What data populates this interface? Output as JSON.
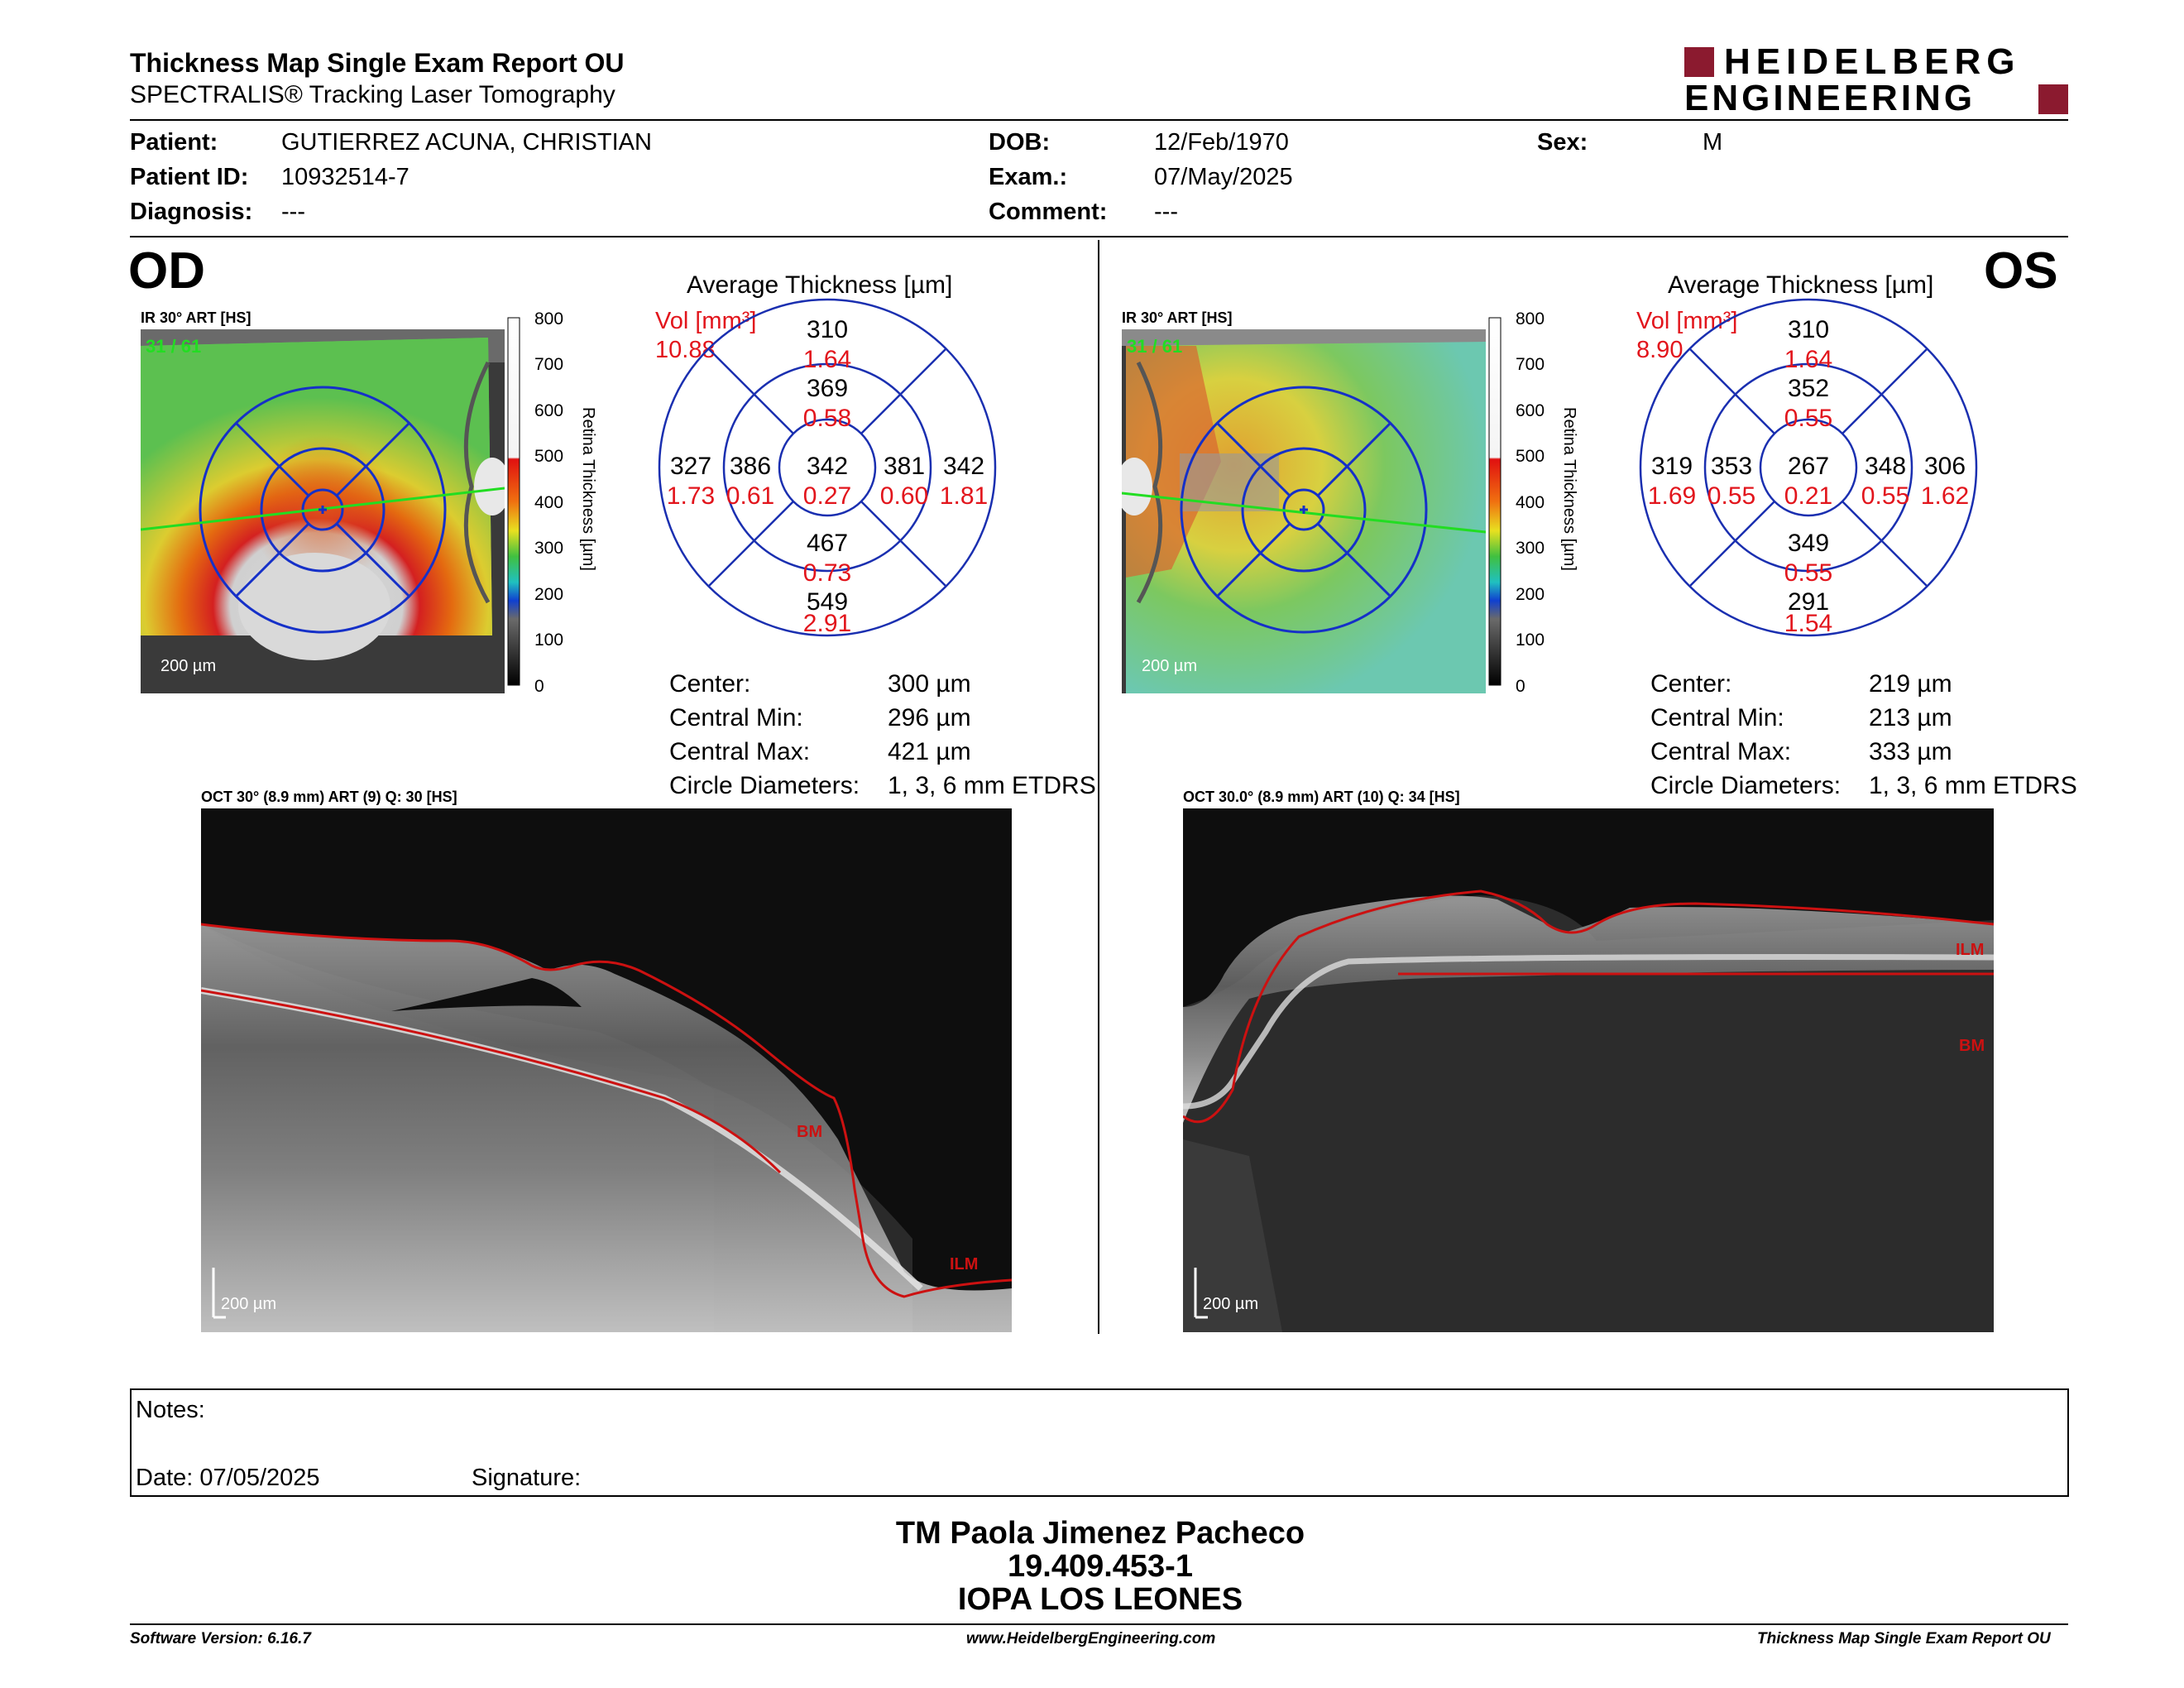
{
  "header": {
    "title": "Thickness Map Single Exam Report OU",
    "subtitle": "SPECTRALIS® Tracking Laser Tomography",
    "logo_line1": "HEIDELBERG",
    "logo_line2": "ENGINEERING",
    "logo_color": "#8b1a2f"
  },
  "patient": {
    "patient_label": "Patient:",
    "patient_value": "GUTIERREZ ACUNA, CHRISTIAN",
    "id_label": "Patient ID:",
    "id_value": "10932514-7",
    "diagnosis_label": "Diagnosis:",
    "diagnosis_value": "---",
    "dob_label": "DOB:",
    "dob_value": "12/Feb/1970",
    "exam_label": "Exam.:",
    "exam_value": "07/May/2025",
    "comment_label": "Comment:",
    "comment_value": "---",
    "sex_label": "Sex:",
    "sex_value": "M"
  },
  "scale": {
    "ticks": [
      "800",
      "700",
      "600",
      "500",
      "400",
      "300",
      "200",
      "100",
      "0"
    ],
    "label": "Retina  Thickness [µm]"
  },
  "od": {
    "eye": "OD",
    "ir_caption": "IR 30° ART [HS]",
    "ir_overlay": "31 / 61",
    "ir_scalebar": "200 µm",
    "avg_title": "Average Thickness [µm]",
    "vol_label": "Vol [mm³]",
    "vol_total": "10.88",
    "sectors": {
      "outer_top": {
        "t": "310",
        "v": "1.64"
      },
      "inner_top": {
        "t": "369",
        "v": "0.58"
      },
      "outer_left": {
        "t": "327",
        "v": "1.73"
      },
      "inner_left": {
        "t": "386",
        "v": "0.61"
      },
      "center": {
        "t": "342",
        "v": "0.27"
      },
      "inner_right": {
        "t": "381",
        "v": "0.60"
      },
      "outer_right": {
        "t": "342",
        "v": "1.81"
      },
      "inner_bottom": {
        "t": "467",
        "v": "0.73"
      },
      "outer_bottom": {
        "t": "549",
        "v": "2.91"
      }
    },
    "stats": [
      {
        "label": "Center:",
        "value": "300 µm"
      },
      {
        "label": "Central Min:",
        "value": "296 µm"
      },
      {
        "label": "Central Max:",
        "value": "421 µm"
      },
      {
        "label": "Circle Diameters:",
        "value": "1, 3, 6 mm ETDRS"
      }
    ],
    "oct_caption": "OCT 30° (8.9 mm) ART (9) Q: 30 [HS]",
    "oct_scalebar": "200 µm",
    "bm_label": "BM",
    "ilm_label": "ILM"
  },
  "os": {
    "eye": "OS",
    "ir_caption": "IR 30° ART [HS]",
    "ir_overlay": "31 / 61",
    "ir_scalebar": "200 µm",
    "avg_title": "Average Thickness [µm]",
    "vol_label": "Vol [mm³]",
    "vol_total": "8.90",
    "sectors": {
      "outer_top": {
        "t": "310",
        "v": "1.64"
      },
      "inner_top": {
        "t": "352",
        "v": "0.55"
      },
      "outer_left": {
        "t": "319",
        "v": "1.69"
      },
      "inner_left": {
        "t": "353",
        "v": "0.55"
      },
      "center": {
        "t": "267",
        "v": "0.21"
      },
      "inner_right": {
        "t": "348",
        "v": "0.55"
      },
      "outer_right": {
        "t": "306",
        "v": "1.62"
      },
      "inner_bottom": {
        "t": "349",
        "v": "0.55"
      },
      "outer_bottom": {
        "t": "291",
        "v": "1.54"
      }
    },
    "stats": [
      {
        "label": "Center:",
        "value": "219 µm"
      },
      {
        "label": "Central Min:",
        "value": "213 µm"
      },
      {
        "label": "Central Max:",
        "value": "333 µm"
      },
      {
        "label": "Circle Diameters:",
        "value": "1, 3, 6 mm ETDRS"
      }
    ],
    "oct_caption": "OCT 30.0° (8.9 mm) ART (10) Q: 34 [HS]",
    "oct_scalebar": "200 µm",
    "ilm_label": "ILM",
    "bm_label": "BM"
  },
  "notes": {
    "notes_label": "Notes:",
    "date_label": "Date: 07/05/2025",
    "signature_label": "Signature:"
  },
  "signer": {
    "name": "TM Paola Jimenez Pacheco",
    "id": "19.409.453-1",
    "org": "IOPA LOS LEONES"
  },
  "footer": {
    "software": "Software Version: 6.16.7",
    "website": "www.HeidelbergEngineering.com",
    "report": "Thickness Map Single Exam Report OU"
  }
}
